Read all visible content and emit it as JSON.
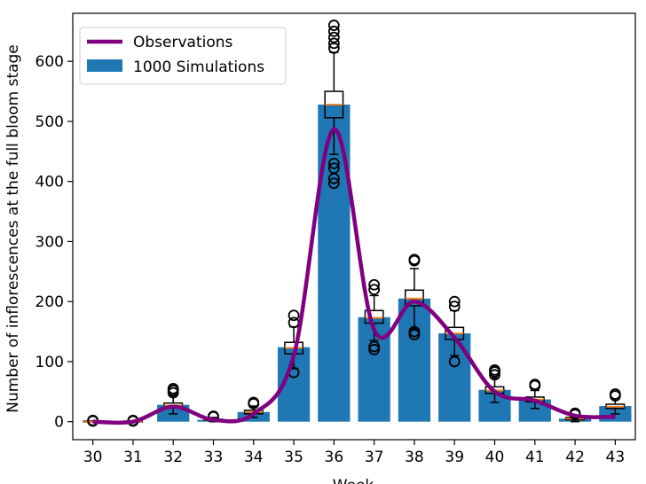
{
  "chart_data": {
    "type": "bar",
    "xlabel": "Week",
    "ylabel": "Number of inflorescences at the full bloom stage",
    "categories": [
      "30",
      "31",
      "32",
      "33",
      "34",
      "35",
      "36",
      "37",
      "38",
      "39",
      "40",
      "41",
      "42",
      "43"
    ],
    "ylim": [
      -30,
      680
    ],
    "yticks": [
      0,
      100,
      200,
      300,
      400,
      500,
      600
    ],
    "legend": {
      "position": "top-left",
      "entries": [
        "Observations",
        "1000 Simulations"
      ]
    },
    "colors": {
      "bar": "#1f77b4",
      "line": "#800080",
      "median": "#ff7f0e",
      "box": "#000000"
    },
    "series": [
      {
        "name": "1000 Simulations",
        "type": "bar",
        "values": [
          0,
          0,
          28,
          3,
          16,
          124,
          528,
          174,
          205,
          147,
          53,
          37,
          5,
          26
        ]
      },
      {
        "name": "Observations",
        "type": "line",
        "values": [
          0,
          0,
          25,
          3,
          13,
          110,
          487,
          153,
          200,
          140,
          50,
          35,
          10,
          8
        ]
      }
    ],
    "boxplots": [
      {
        "q1": 0,
        "median": 0,
        "q3": 1,
        "whisker_low": 0,
        "whisker_high": 1,
        "outliers": [
          1,
          2
        ]
      },
      {
        "q1": 0,
        "median": 0,
        "q3": 1,
        "whisker_low": 0,
        "whisker_high": 1,
        "outliers": [
          1,
          2
        ]
      },
      {
        "q1": 24,
        "median": 27,
        "q3": 31,
        "whisker_low": 13,
        "whisker_high": 43,
        "outliers": [
          48,
          52,
          55
        ]
      },
      {
        "q1": 2,
        "median": 3,
        "q3": 4,
        "whisker_low": 0,
        "whisker_high": 7,
        "outliers": [
          8,
          9
        ]
      },
      {
        "q1": 13,
        "median": 16,
        "q3": 19,
        "whisker_low": 7,
        "whisker_high": 26,
        "outliers": [
          30,
          32
        ]
      },
      {
        "q1": 113,
        "median": 123,
        "q3": 132,
        "whisker_low": 88,
        "whisker_high": 158,
        "outliers": [
          82,
          165,
          177
        ]
      },
      {
        "q1": 506,
        "median": 528,
        "q3": 550,
        "whisker_low": 445,
        "whisker_high": 615,
        "outliers": [
          397,
          405,
          422,
          430,
          622,
          630,
          640,
          650,
          660
        ]
      },
      {
        "q1": 164,
        "median": 173,
        "q3": 185,
        "whisker_low": 135,
        "whisker_high": 210,
        "outliers": [
          120,
          125,
          220,
          228
        ]
      },
      {
        "q1": 193,
        "median": 205,
        "q3": 219,
        "whisker_low": 155,
        "whisker_high": 255,
        "outliers": [
          145,
          150,
          268,
          270
        ]
      },
      {
        "q1": 137,
        "median": 147,
        "q3": 157,
        "whisker_low": 110,
        "whisker_high": 185,
        "outliers": [
          100,
          192,
          200
        ]
      },
      {
        "q1": 47,
        "median": 52,
        "q3": 58,
        "whisker_low": 32,
        "whisker_high": 73,
        "outliers": [
          78,
          83,
          86
        ]
      },
      {
        "q1": 33,
        "median": 37,
        "q3": 41,
        "whisker_low": 22,
        "whisker_high": 52,
        "outliers": [
          60,
          62
        ]
      },
      {
        "q1": 3,
        "median": 5,
        "q3": 7,
        "whisker_low": 0,
        "whisker_high": 10,
        "outliers": [
          12,
          14
        ]
      },
      {
        "q1": 22,
        "median": 25,
        "q3": 29,
        "whisker_low": 13,
        "whisker_high": 38,
        "outliers": [
          43,
          46
        ]
      }
    ]
  }
}
